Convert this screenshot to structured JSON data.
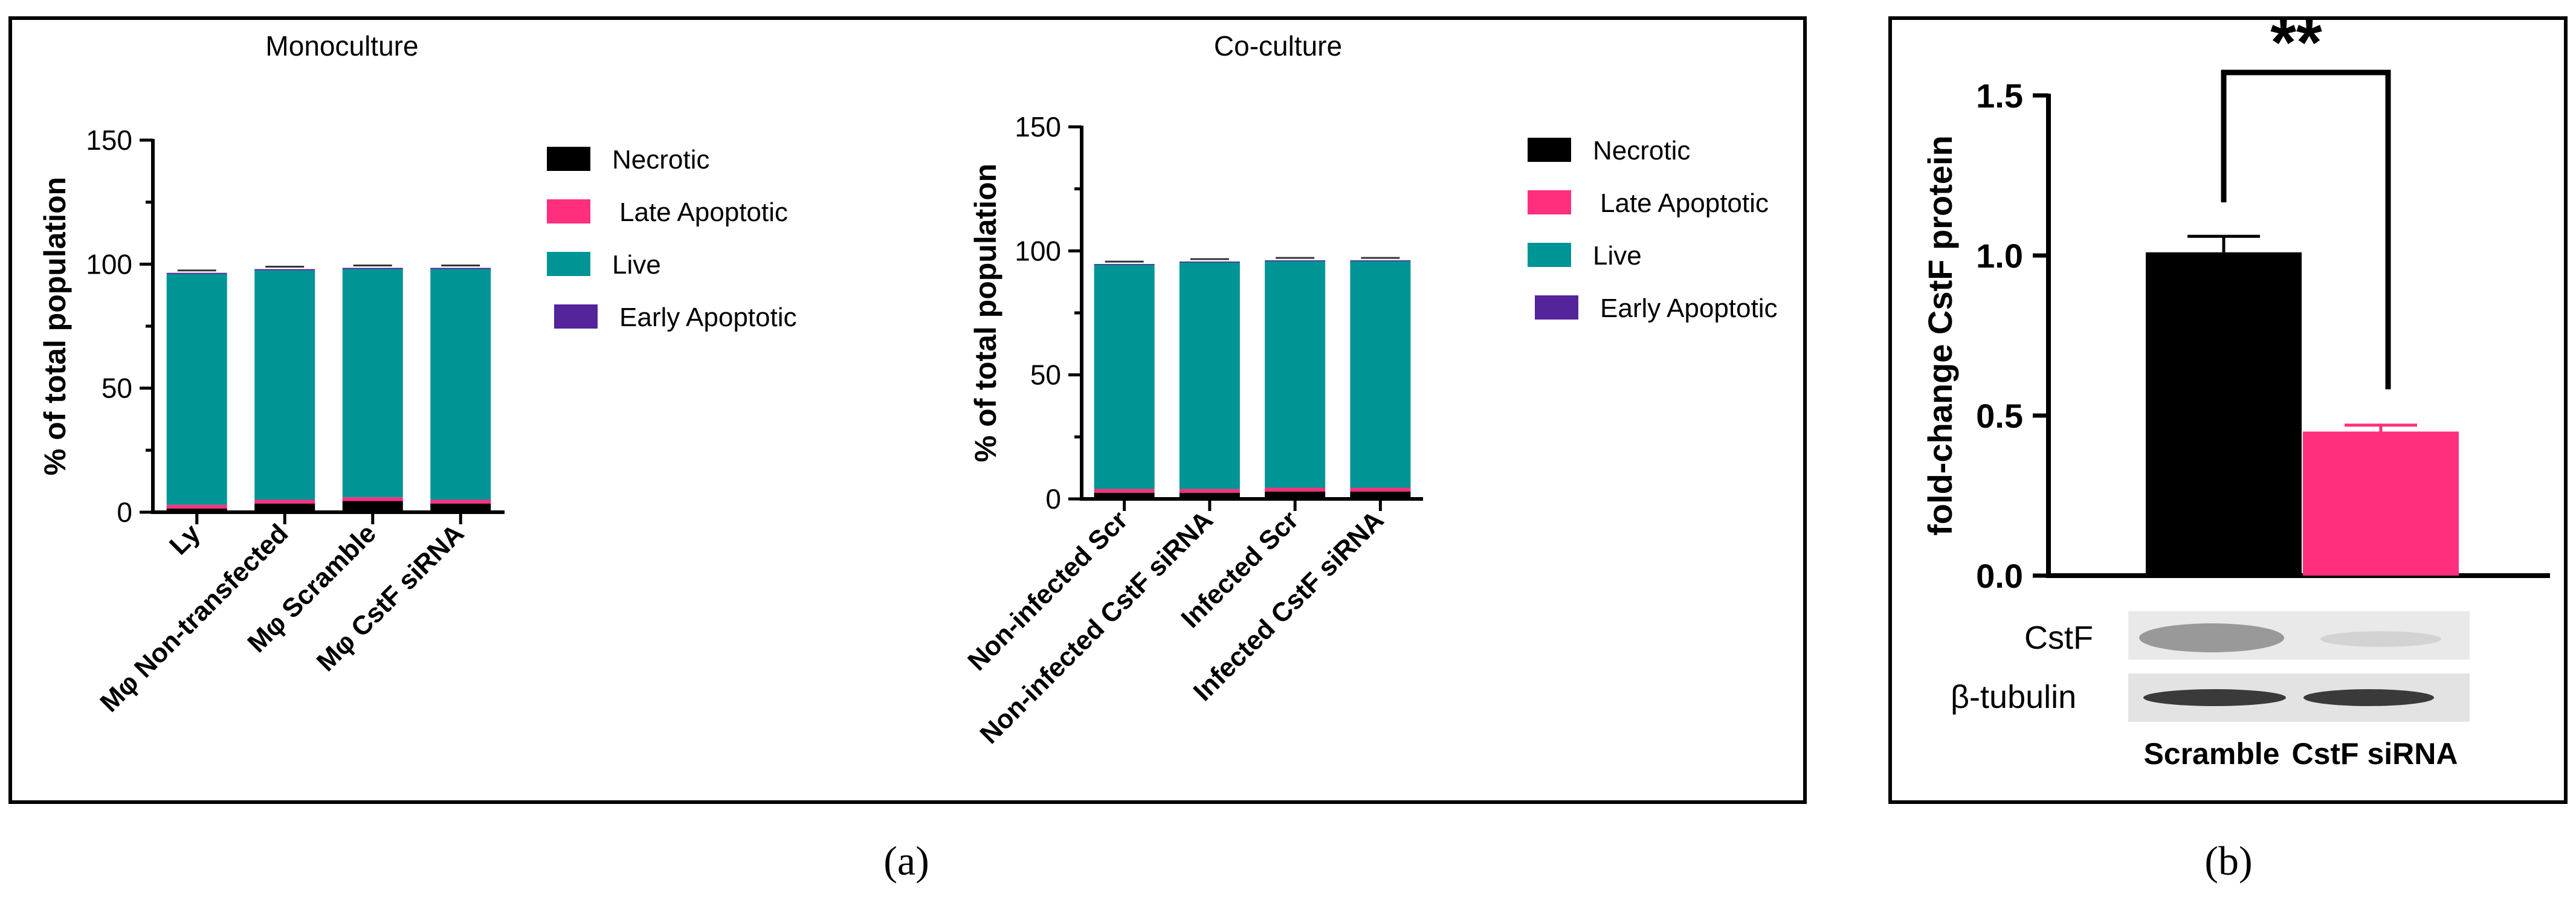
{
  "panel_labels": {
    "a": "(a)",
    "b": "(b)"
  },
  "colors": {
    "necrotic": "#000000",
    "late_apoptotic": "#ff2f7e",
    "live": "#009595",
    "early_apoptotic": "#54249a",
    "axis": "#000000",
    "frame": "#000000"
  },
  "chart_data": [
    {
      "id": "mono",
      "type": "bar",
      "stacked": true,
      "title": "Monoculture",
      "ylabel": "% of total population",
      "xlabel": "",
      "ylim": [
        0,
        150
      ],
      "yticks": [
        0,
        50,
        100,
        150
      ],
      "categories": [
        "Ly",
        "Mφ Non-transfected",
        "Mφ Scramble",
        "Mφ CstF siRNA"
      ],
      "series": [
        {
          "name": "Necrotic",
          "key": "necrotic",
          "values": [
            1.5,
            3.5,
            4.5,
            3.5
          ]
        },
        {
          "name": "Late Apoptotic",
          "key": "late_apoptotic",
          "values": [
            1.5,
            1.5,
            1.5,
            1.5
          ]
        },
        {
          "name": "Live",
          "key": "live",
          "values": [
            93,
            92.5,
            92,
            93
          ]
        },
        {
          "name": "Early Apoptotic",
          "key": "early_apoptotic",
          "values": [
            0.5,
            0.5,
            0.5,
            0.5
          ]
        }
      ],
      "legend": [
        "Necrotic",
        "Late Apoptotic",
        "Live",
        "Early Apoptotic"
      ],
      "legend_position": "right"
    },
    {
      "id": "co",
      "type": "bar",
      "stacked": true,
      "title": "Co-culture",
      "ylabel": "% of total population",
      "xlabel": "",
      "ylim": [
        0,
        150
      ],
      "yticks": [
        0,
        50,
        100,
        150
      ],
      "categories": [
        "Non-infected  Scr",
        "Non-infected  CstF siRNA",
        "Infected Scr",
        "Infected CstF siRNA"
      ],
      "series": [
        {
          "name": "Necrotic",
          "key": "necrotic",
          "values": [
            2.5,
            2.5,
            3,
            3
          ]
        },
        {
          "name": "Late Apoptotic",
          "key": "late_apoptotic",
          "values": [
            1.5,
            1.5,
            1.5,
            1.5
          ]
        },
        {
          "name": "Live",
          "key": "live",
          "values": [
            90.5,
            91.5,
            91.5,
            91.5
          ]
        },
        {
          "name": "Early Apoptotic",
          "key": "early_apoptotic",
          "values": [
            0.2,
            0.2,
            0.2,
            0.2
          ]
        }
      ],
      "legend": [
        "Necrotic",
        "Late Apoptotic",
        "Live",
        "Early Apoptotic"
      ],
      "legend_position": "right"
    },
    {
      "id": "b",
      "type": "bar",
      "stacked": false,
      "title": "",
      "ylabel": "fold-change CstF protein",
      "xlabel": "",
      "ylim": [
        0,
        1.5
      ],
      "yticks": [
        "0.0",
        "0.5",
        "1.0",
        "1.5"
      ],
      "categories": [
        "Scramble",
        "CstF siRNA"
      ],
      "values": [
        1.01,
        0.45
      ],
      "errors": [
        0.05,
        0.02
      ],
      "bar_colors": [
        "#000000",
        "#ff2f7e"
      ],
      "significance": "**",
      "blot_labels": [
        "CstF",
        "β-tubulin"
      ]
    }
  ]
}
